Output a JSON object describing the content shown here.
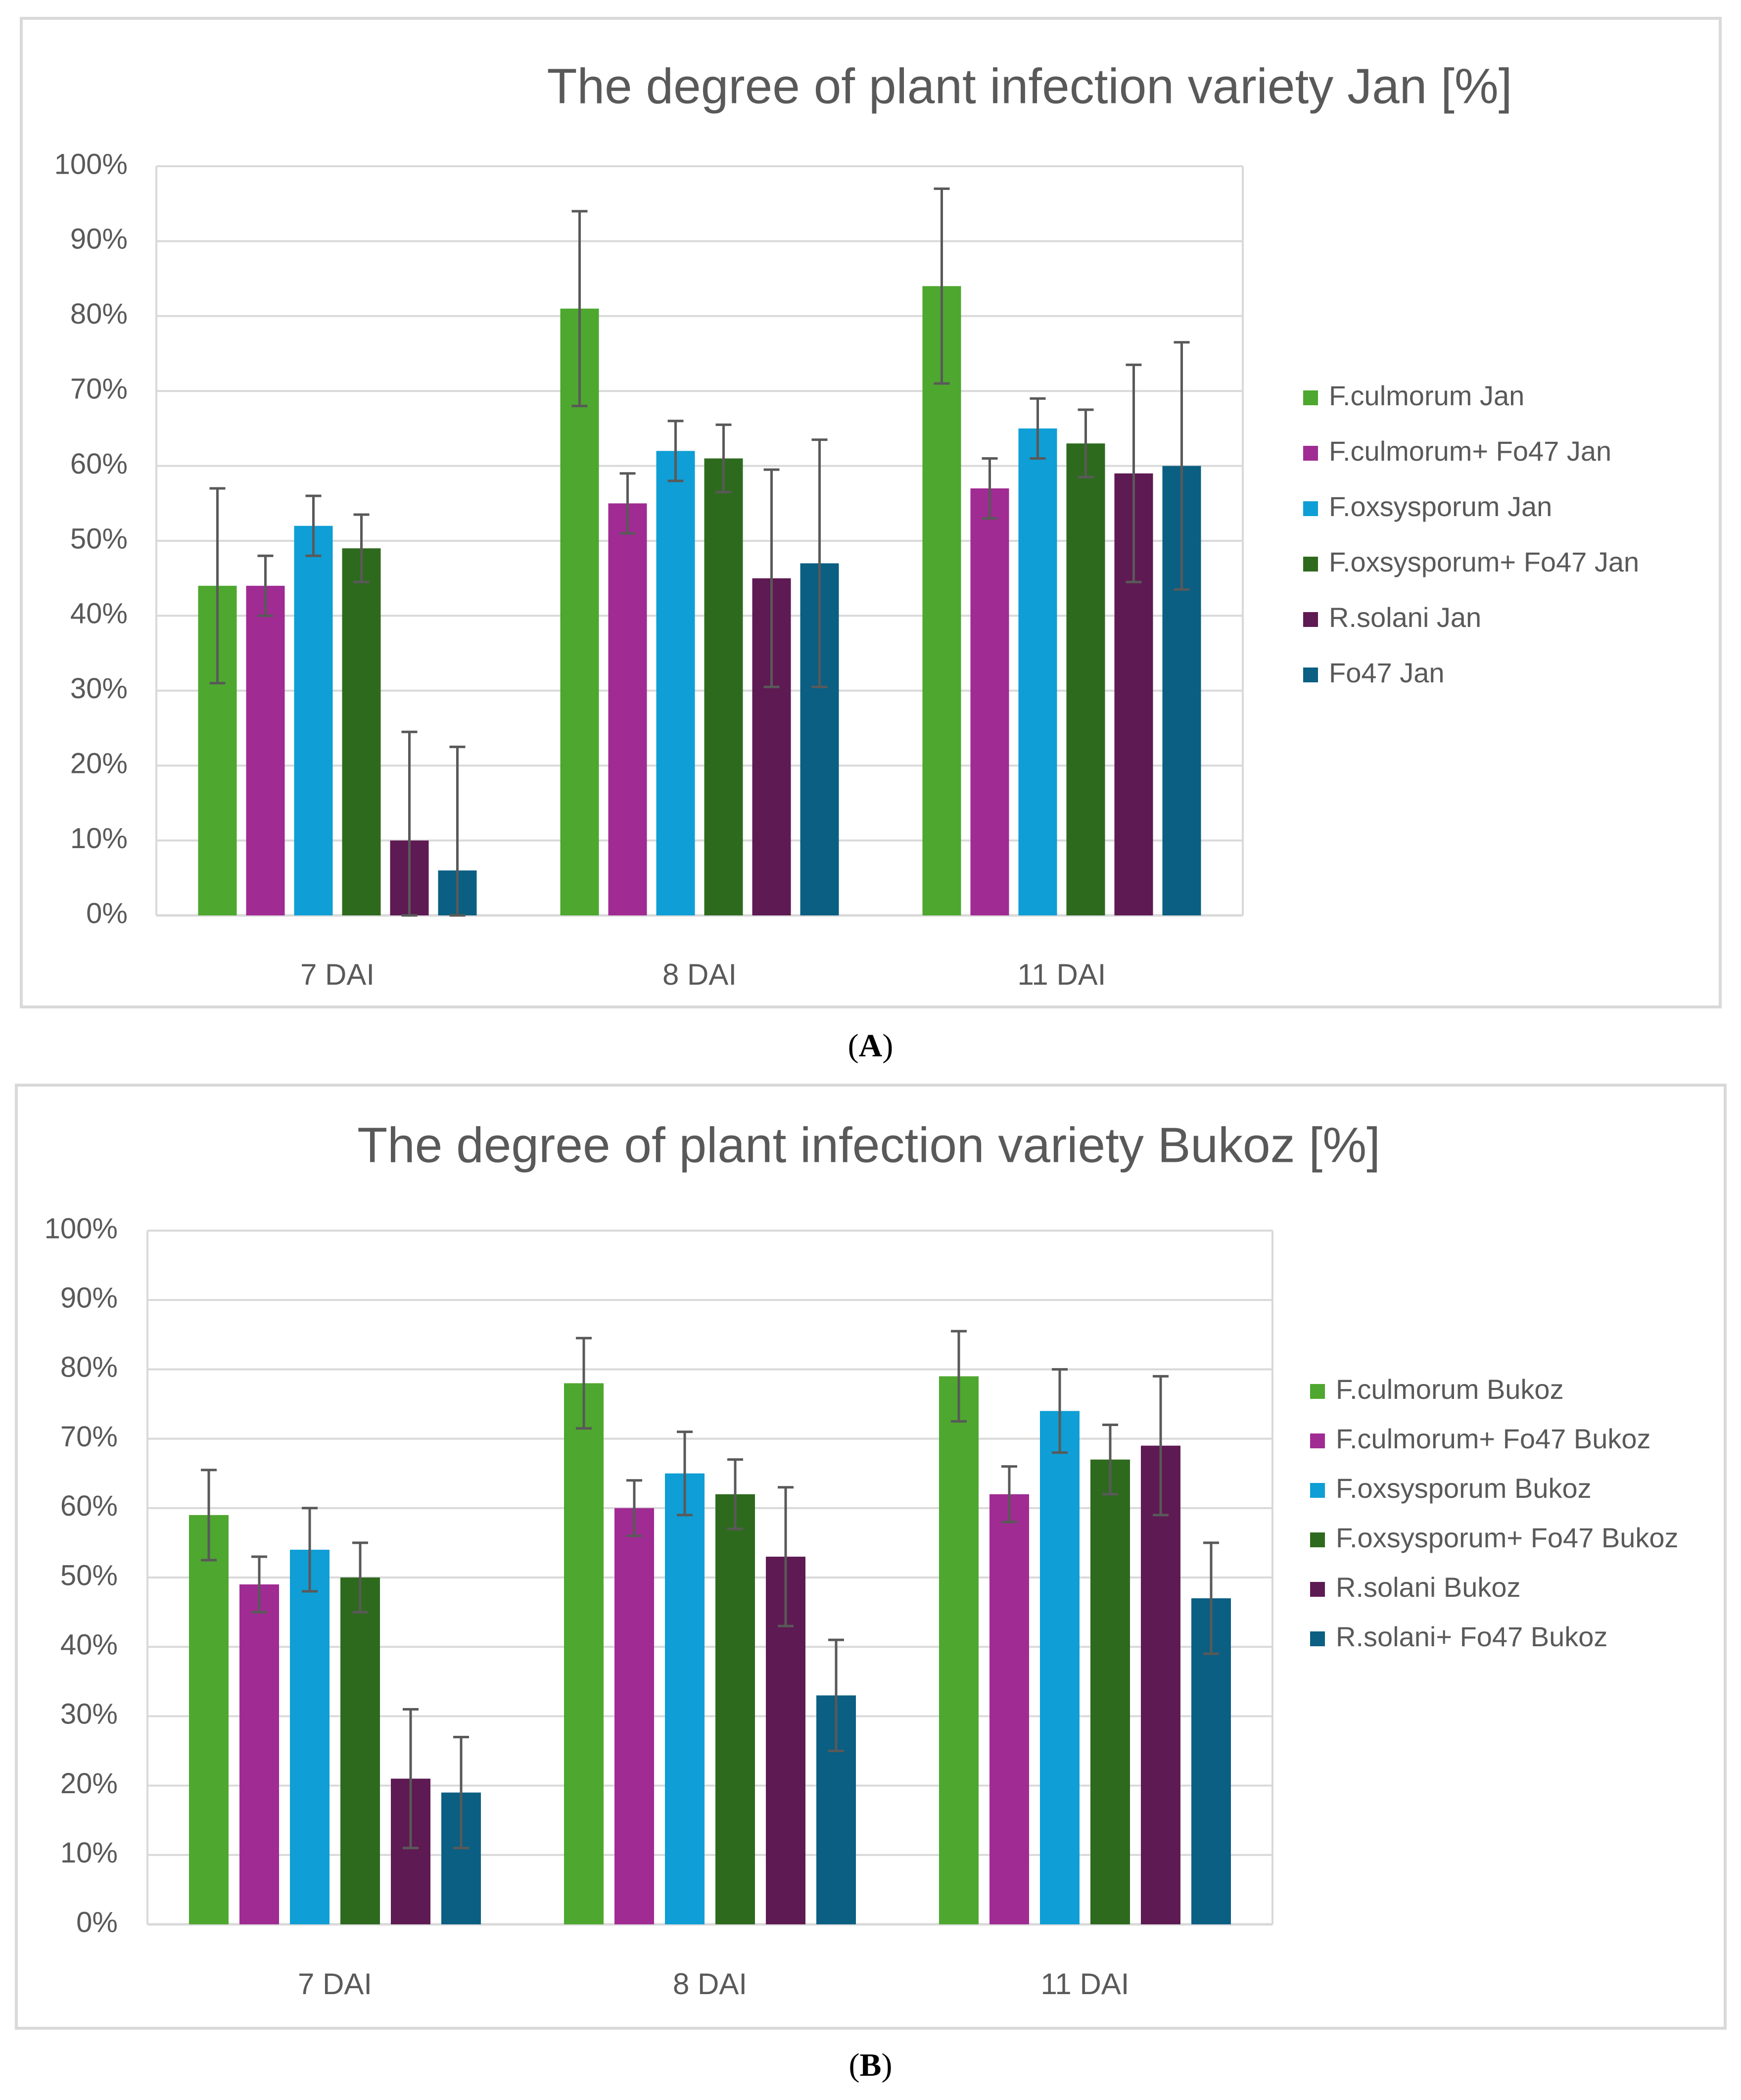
{
  "chart_data": [
    {
      "type": "bar",
      "title": "The degree of plant infection variety Jan [%]",
      "categories": [
        "7 DAI",
        "8 DAI",
        "11 DAI"
      ],
      "ylim": [
        0,
        100
      ],
      "yticks": [
        "0%",
        "10%",
        "20%",
        "30%",
        "40%",
        "50%",
        "60%",
        "70%",
        "80%",
        "90%",
        "100%"
      ],
      "grid": true,
      "legend_position": "right",
      "series": [
        {
          "name": "F.culmorum Jan",
          "color": "#4EA72E",
          "values": [
            44,
            81,
            84
          ],
          "errors": [
            13,
            13,
            13
          ]
        },
        {
          "name": "F.culmorum+ Fo47 Jan",
          "color": "#A02B93",
          "values": [
            44,
            55,
            57
          ],
          "errors": [
            4,
            4,
            4
          ]
        },
        {
          "name": "F.oxsysporum Jan",
          "color": "#0F9ED5",
          "values": [
            52,
            62,
            65
          ],
          "errors": [
            4,
            4,
            4
          ]
        },
        {
          "name": "F.oxsysporum+ Fo47 Jan",
          "color": "#2E6A1E",
          "values": [
            49,
            61,
            63
          ],
          "errors": [
            4.5,
            4.5,
            4.5
          ]
        },
        {
          "name": "R.solani Jan",
          "color": "#5E1A52",
          "values": [
            10,
            45,
            59
          ],
          "errors": [
            14.5,
            14.5,
            14.5
          ]
        },
        {
          "name": "Fo47 Jan",
          "color": "#0B5F82",
          "values": [
            6,
            47,
            60
          ],
          "errors": [
            16.5,
            16.5,
            16.5
          ]
        }
      ]
    },
    {
      "type": "bar",
      "title": "The degree of plant infection variety Bukoz [%]",
      "categories": [
        "7 DAI",
        "8 DAI",
        "11 DAI"
      ],
      "ylim": [
        0,
        100
      ],
      "yticks": [
        "0%",
        "10%",
        "20%",
        "30%",
        "40%",
        "50%",
        "60%",
        "70%",
        "80%",
        "90%",
        "100%"
      ],
      "grid": true,
      "legend_position": "right",
      "series": [
        {
          "name": "F.culmorum Bukoz",
          "color": "#4EA72E",
          "values": [
            59,
            78,
            79
          ],
          "errors": [
            6.5,
            6.5,
            6.5
          ]
        },
        {
          "name": "F.culmorum+ Fo47 Bukoz",
          "color": "#A02B93",
          "values": [
            49,
            60,
            62
          ],
          "errors": [
            4,
            4,
            4
          ]
        },
        {
          "name": "F.oxsysporum Bukoz",
          "color": "#0F9ED5",
          "values": [
            54,
            65,
            74
          ],
          "errors": [
            6,
            6,
            6
          ]
        },
        {
          "name": "F.oxsysporum+ Fo47 Bukoz",
          "color": "#2E6A1E",
          "values": [
            50,
            62,
            67
          ],
          "errors": [
            5,
            5,
            5
          ]
        },
        {
          "name": "R.solani  Bukoz",
          "color": "#5E1A52",
          "values": [
            21,
            53,
            69
          ],
          "errors": [
            10,
            10,
            10
          ]
        },
        {
          "name": "R.solani+ Fo47 Bukoz",
          "color": "#0B5F82",
          "values": [
            19,
            33,
            47
          ],
          "errors": [
            8,
            8,
            8
          ]
        }
      ]
    }
  ],
  "panel_labels": [
    "A",
    "B"
  ]
}
